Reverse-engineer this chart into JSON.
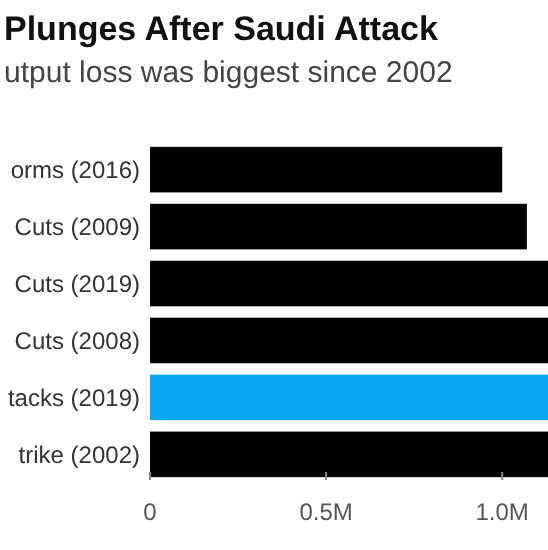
{
  "chart_data": {
    "type": "bar",
    "orientation": "horizontal",
    "title": "Plunges After Saudi Attack",
    "subtitle": "utput loss was biggest since 2002",
    "categories": [
      "orms (2016)",
      "Cuts (2009)",
      "Cuts (2019)",
      "Cuts (2008)",
      "tacks (2019)",
      "trike (2002)"
    ],
    "values": [
      1.0,
      1.07,
      1.13,
      1.13,
      1.13,
      1.13
    ],
    "colors": [
      "#000000",
      "#000000",
      "#000000",
      "#000000",
      "#0aa8f0",
      "#000000"
    ],
    "xlim": [
      0,
      1.13
    ],
    "xticks": [
      0,
      {
        "value": 0.5,
        "label": "0.5M"
      },
      {
        "value": 1.0,
        "label": "1.0M"
      }
    ],
    "grid": false
  }
}
